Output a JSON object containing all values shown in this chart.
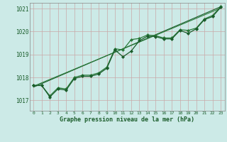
{
  "background_color": "#cceae7",
  "grid_color": "#aad4d0",
  "line_color_dark": "#1a5c2a",
  "line_color_mid": "#2a7a3a",
  "xlabel": "Graphe pression niveau de la mer (hPa)",
  "xlim": [
    -0.5,
    23.5
  ],
  "ylim": [
    1016.55,
    1021.25
  ],
  "yticks": [
    1017,
    1018,
    1019,
    1020,
    1021
  ],
  "xticks": [
    0,
    1,
    2,
    3,
    4,
    5,
    6,
    7,
    8,
    9,
    10,
    11,
    12,
    13,
    14,
    15,
    16,
    17,
    18,
    19,
    20,
    21,
    22,
    23
  ],
  "series_main": {
    "x": [
      0,
      1,
      2,
      3,
      4,
      5,
      6,
      7,
      8,
      9,
      10,
      11,
      12,
      13,
      14,
      15,
      16,
      17,
      18,
      19,
      20,
      21,
      22,
      23
    ],
    "y": [
      1017.65,
      1017.65,
      1017.15,
      1017.5,
      1017.45,
      1017.95,
      1018.05,
      1018.05,
      1018.15,
      1018.4,
      1019.2,
      1018.9,
      1019.15,
      1019.6,
      1019.8,
      1019.78,
      1019.68,
      1019.68,
      1020.05,
      1019.92,
      1020.12,
      1020.52,
      1020.65,
      1021.05
    ]
  },
  "series_upper": {
    "x": [
      0,
      1,
      2,
      3,
      4,
      5,
      6,
      7,
      8,
      9,
      10,
      11,
      12,
      13,
      14,
      15,
      16,
      17,
      18,
      19,
      20,
      21,
      22,
      23
    ],
    "y": [
      1017.65,
      1017.65,
      1017.2,
      1017.55,
      1017.5,
      1018.0,
      1018.1,
      1018.1,
      1018.2,
      1018.45,
      1019.25,
      1019.2,
      1019.65,
      1019.7,
      1019.85,
      1019.82,
      1019.72,
      1019.72,
      1020.08,
      1020.05,
      1020.15,
      1020.55,
      1020.7,
      1021.08
    ]
  },
  "series_linear": {
    "x": [
      0,
      23
    ],
    "y": [
      1017.58,
      1021.08
    ]
  },
  "series_linear2": {
    "x": [
      0,
      23
    ],
    "y": [
      1017.62,
      1021.02
    ]
  },
  "marker_style": "D",
  "marker_size": 2.0,
  "lw_main": 0.9,
  "lw_linear": 0.8
}
